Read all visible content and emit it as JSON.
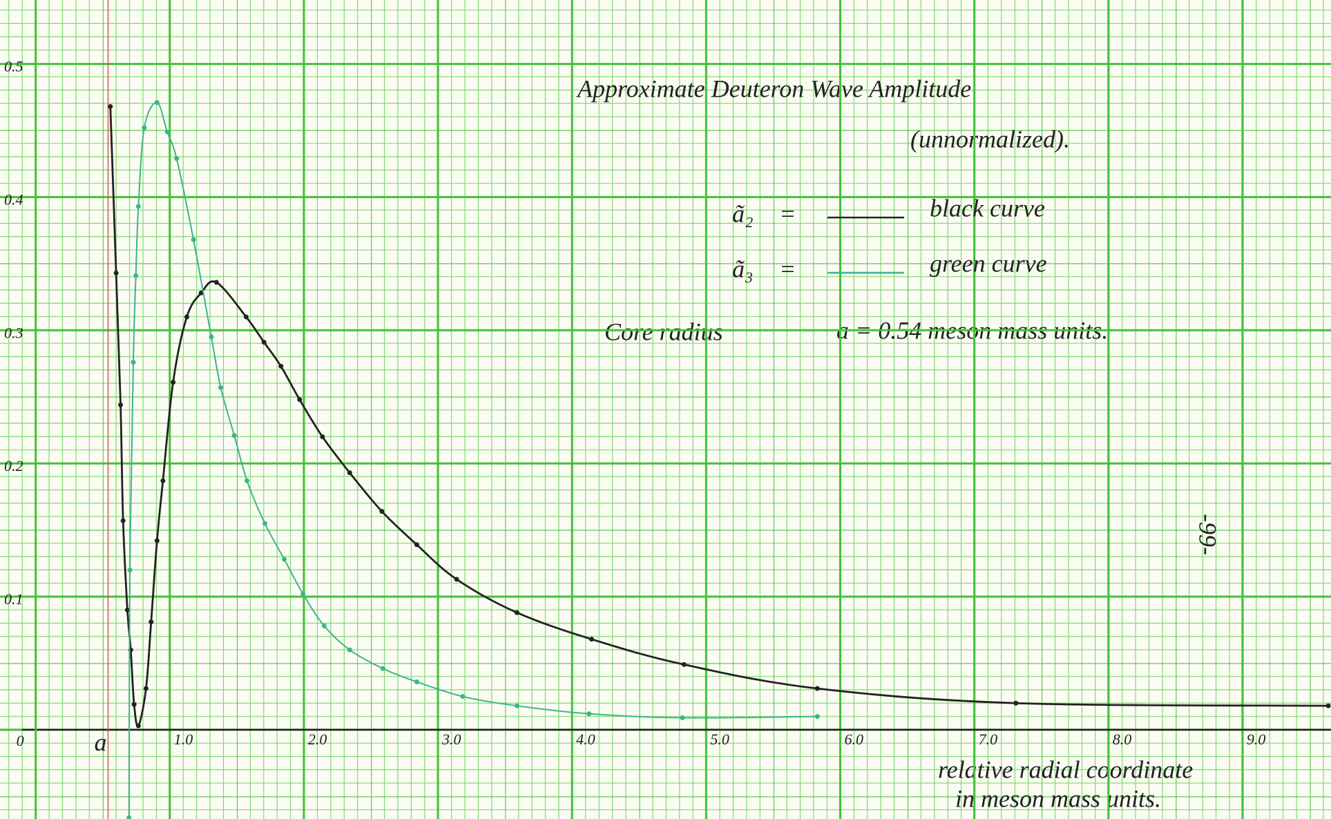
{
  "chart_data": {
    "type": "line",
    "title": "Approximate Deuteron Wave Amplitude",
    "subtitle": "(unnormalized).",
    "xlabel": [
      "relative radial coordinate",
      "in meson mass units."
    ],
    "annotations": [
      {
        "text": "Core radius"
      },
      {
        "text": "a = 0.54 meson mass units."
      },
      {
        "text": "a",
        "x": 0.54,
        "color": "#e05050"
      },
      {
        "text": "-99-"
      }
    ],
    "xlim": [
      -0.266,
      9.66
    ],
    "ylim": [
      -0.067,
      0.548
    ],
    "xticks": [
      {
        "value": 1,
        "label": "1.0"
      },
      {
        "value": 2,
        "label": "2.0"
      },
      {
        "value": 3,
        "label": "3.0"
      },
      {
        "value": 4,
        "label": "4.0"
      },
      {
        "value": 5,
        "label": "5.0"
      },
      {
        "value": 6,
        "label": "6.0"
      },
      {
        "value": 7,
        "label": "7.0"
      },
      {
        "value": 8,
        "label": "8.0"
      },
      {
        "value": 9,
        "label": "9.0"
      }
    ],
    "yticks": [
      0,
      0.1,
      0.2,
      0.3,
      0.4,
      0.5
    ],
    "grid": true,
    "series": [
      {
        "name": "ã₂",
        "legend_text": "black curve",
        "color": "#222222",
        "x": [
          0.557,
          0.6,
          0.633,
          0.652,
          0.684,
          0.709,
          0.734,
          0.766,
          0.823,
          0.861,
          0.905,
          0.949,
          1.025,
          1.127,
          1.234,
          1.348,
          1.57,
          1.703,
          1.829,
          1.968,
          2.139,
          2.342,
          2.582,
          2.842,
          3.139,
          3.589,
          4.146,
          4.835,
          5.829,
          7.31,
          9.64
        ],
        "values": [
          0.468,
          0.343,
          0.244,
          0.157,
          0.09,
          0.06,
          0.019,
          0.003,
          0.031,
          0.081,
          0.142,
          0.187,
          0.261,
          0.31,
          0.328,
          0.336,
          0.31,
          0.291,
          0.273,
          0.248,
          0.22,
          0.193,
          0.164,
          0.139,
          0.113,
          0.088,
          0.068,
          0.049,
          0.031,
          0.02,
          0.018
        ]
      },
      {
        "name": "ã₃",
        "legend_text": "green curve",
        "color": "#3cb58a",
        "x": [
          0.696,
          0.703,
          0.728,
          0.747,
          0.766,
          0.81,
          0.905,
          0.981,
          1.051,
          1.177,
          1.31,
          1.38,
          1.481,
          1.576,
          1.709,
          1.854,
          1.994,
          2.152,
          2.342,
          2.589,
          2.842,
          3.184,
          3.589,
          4.127,
          4.823,
          5.829
        ],
        "values": [
          -0.066,
          0.12,
          0.276,
          0.341,
          0.393,
          0.452,
          0.471,
          0.449,
          0.429,
          0.368,
          0.295,
          0.257,
          0.221,
          0.187,
          0.155,
          0.128,
          0.102,
          0.078,
          0.06,
          0.046,
          0.036,
          0.025,
          0.018,
          0.012,
          0.009,
          0.01
        ]
      }
    ]
  }
}
